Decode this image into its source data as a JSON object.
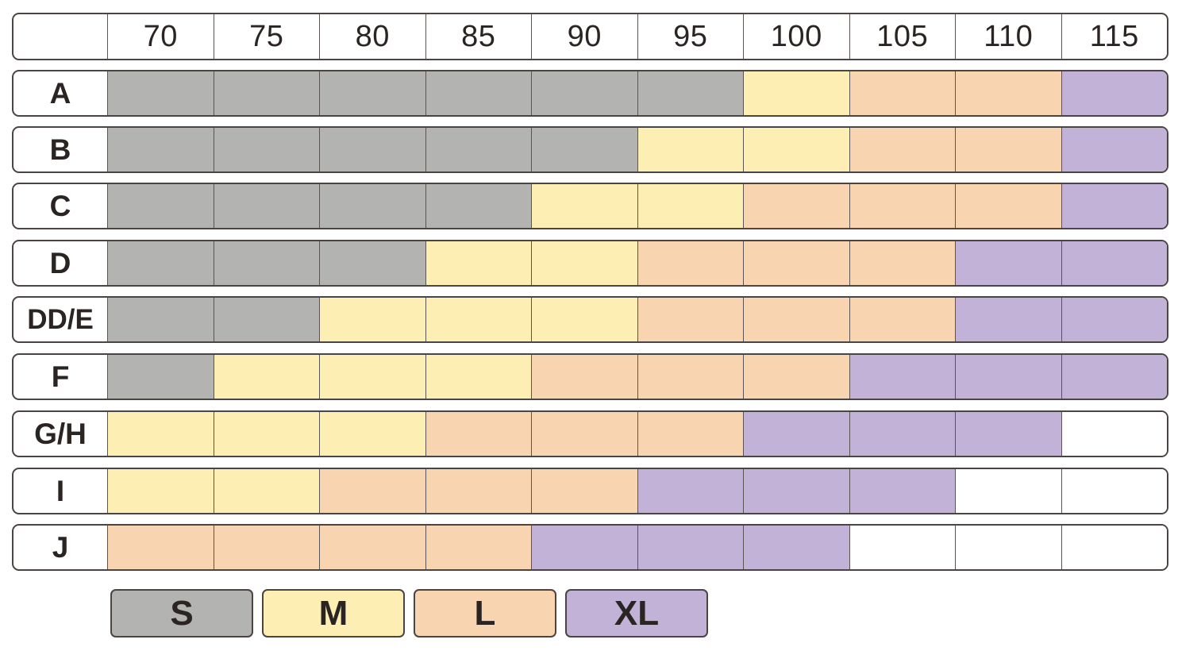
{
  "chart_data": {
    "type": "heatmap",
    "title": "",
    "columns": [
      "70",
      "75",
      "80",
      "85",
      "90",
      "95",
      "100",
      "105",
      "110",
      "115"
    ],
    "rows": [
      "A",
      "B",
      "C",
      "D",
      "DD/E",
      "F",
      "G/H",
      "I",
      "J"
    ],
    "values": [
      [
        "S",
        "S",
        "S",
        "S",
        "S",
        "S",
        "M",
        "L",
        "L",
        "XL"
      ],
      [
        "S",
        "S",
        "S",
        "S",
        "S",
        "M",
        "M",
        "L",
        "L",
        "XL"
      ],
      [
        "S",
        "S",
        "S",
        "S",
        "M",
        "M",
        "L",
        "L",
        "L",
        "XL"
      ],
      [
        "S",
        "S",
        "S",
        "M",
        "M",
        "L",
        "L",
        "L",
        "XL",
        "XL"
      ],
      [
        "S",
        "S",
        "M",
        "M",
        "M",
        "L",
        "L",
        "L",
        "XL",
        "XL"
      ],
      [
        "S",
        "M",
        "M",
        "M",
        "L",
        "L",
        "L",
        "XL",
        "XL",
        "XL"
      ],
      [
        "M",
        "M",
        "M",
        "L",
        "L",
        "L",
        "XL",
        "XL",
        "XL",
        ""
      ],
      [
        "M",
        "M",
        "L",
        "L",
        "L",
        "XL",
        "XL",
        "XL",
        "",
        ""
      ],
      [
        "L",
        "L",
        "L",
        "L",
        "XL",
        "XL",
        "XL",
        "",
        "",
        ""
      ]
    ],
    "legend": [
      {
        "label": "S",
        "color": "#b3b3b1"
      },
      {
        "label": "M",
        "color": "#fdeeb4"
      },
      {
        "label": "L",
        "color": "#f9d4b1"
      },
      {
        "label": "XL",
        "color": "#c2b2d8"
      }
    ],
    "empty_color": "#ffffff"
  }
}
